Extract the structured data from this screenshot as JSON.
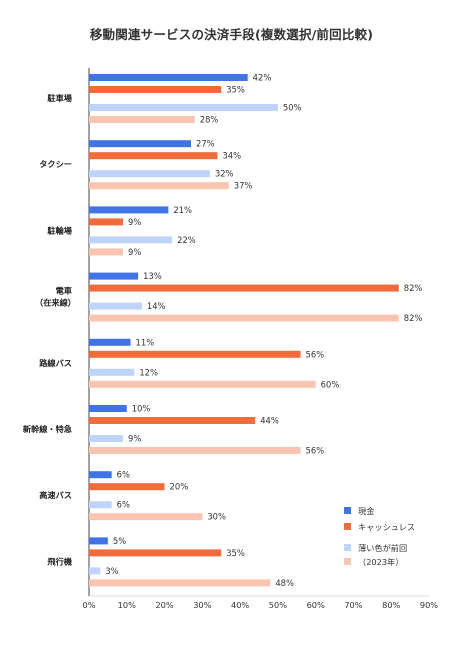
{
  "title": "移動関連サービスの決済手段(複数選択/前回比較)",
  "chart_data": {
    "type": "bar",
    "orientation": "horizontal",
    "categories": [
      {
        "lines": [
          "駐車場"
        ]
      },
      {
        "lines": [
          "タクシー"
        ]
      },
      {
        "lines": [
          "駐輪場"
        ]
      },
      {
        "lines": [
          "電車",
          "（在来線）"
        ]
      },
      {
        "lines": [
          "路線バス"
        ]
      },
      {
        "lines": [
          "新幹線・特急"
        ]
      },
      {
        "lines": [
          "高速バス"
        ]
      },
      {
        "lines": [
          "飛行機"
        ]
      }
    ],
    "series": [
      {
        "name": "現金",
        "color": "#3f73e6",
        "values": [
          42,
          27,
          21,
          13,
          11,
          10,
          6,
          5
        ]
      },
      {
        "name": "キャッシュレス",
        "color": "#f26b3a",
        "values": [
          35,
          34,
          9,
          82,
          56,
          44,
          20,
          35
        ]
      },
      {
        "name": "薄い色が前回",
        "color": "#bfd4fa",
        "values": [
          50,
          32,
          22,
          14,
          12,
          9,
          6,
          3
        ]
      },
      {
        "name": "（2023年）",
        "color": "#f9c4b0",
        "values": [
          28,
          37,
          9,
          82,
          60,
          56,
          30,
          48
        ]
      }
    ],
    "value_suffix": "%",
    "xlim": [
      0,
      90
    ],
    "xticks": [
      "0%",
      "10%",
      "20%",
      "30%",
      "40%",
      "50%",
      "60%",
      "70%",
      "80%",
      "90%"
    ],
    "grid": false,
    "legend_position": "bottom-right"
  }
}
